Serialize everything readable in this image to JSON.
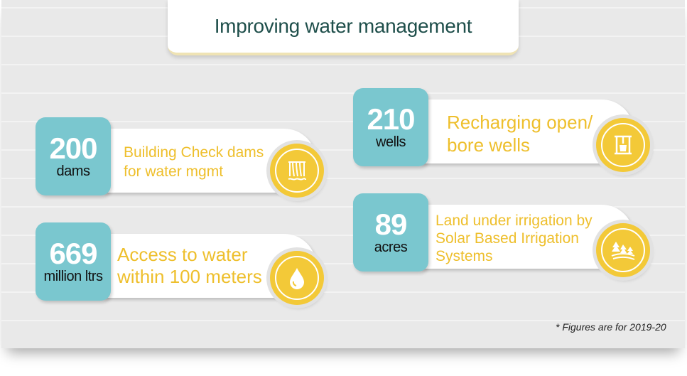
{
  "title": "Improving water management",
  "cards": [
    {
      "value": "200",
      "unit": "dams",
      "description": "Building Check dams for water mgmt",
      "icon": "dam-icon"
    },
    {
      "value": "669",
      "unit": "million ltrs",
      "description": "Access to water within 100 meters",
      "icon": "water-drop-icon"
    },
    {
      "value": "210",
      "unit": "wells",
      "description": "Recharging open/ bore wells",
      "icon": "well-icon"
    },
    {
      "value": "89",
      "unit": "acres",
      "description": "Land under irrigation by Solar Based Irrigation Systems",
      "icon": "trees-field-icon"
    }
  ],
  "footnote": "* Figures are for 2019-20",
  "colors": {
    "teal": "#7ac7cf",
    "yellow": "#f3c938",
    "title": "#1f4f4b"
  }
}
